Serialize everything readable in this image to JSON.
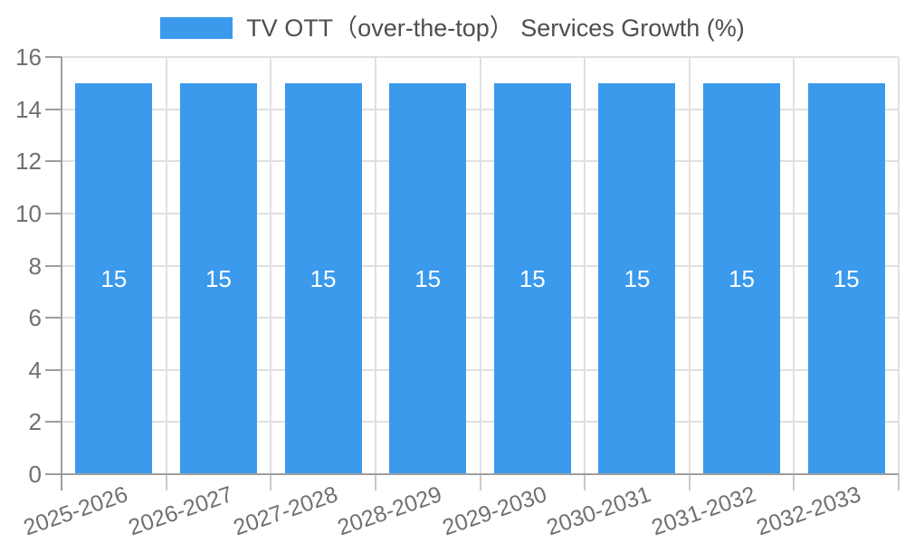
{
  "legend": {
    "label": "TV OTT（over-the-top） Services Growth (%)"
  },
  "colors": {
    "bar": "#3B9AEC",
    "grid": "#E0E0E0",
    "axis": "#9E9E9E",
    "minor_tick": "#C9C9C9",
    "axis_label_text": "#707070",
    "legend_text": "#4E4E4E",
    "bar_label_text": "#FFFFFF",
    "background": "#FFFFFF"
  },
  "chart_data": {
    "type": "bar",
    "title": "TV OTT（over-the-top） Services Growth (%)",
    "categories": [
      "2025-2026",
      "2026-2027",
      "2027-2028",
      "2028-2029",
      "2029-2030",
      "2030-2031",
      "2031-2032",
      "2032-2033"
    ],
    "values": [
      15,
      15,
      15,
      15,
      15,
      15,
      15,
      15
    ],
    "bar_labels": [
      "15",
      "15",
      "15",
      "15",
      "15",
      "15",
      "15",
      "15"
    ],
    "xlabel": "",
    "ylabel": "",
    "ylim": [
      0,
      16
    ],
    "yticks": [
      0,
      2,
      4,
      6,
      8,
      10,
      12,
      14,
      16
    ],
    "grid": true,
    "legend_position": "top",
    "x_label_rotation_deg": -19,
    "bar_label_position": "inside-center"
  }
}
